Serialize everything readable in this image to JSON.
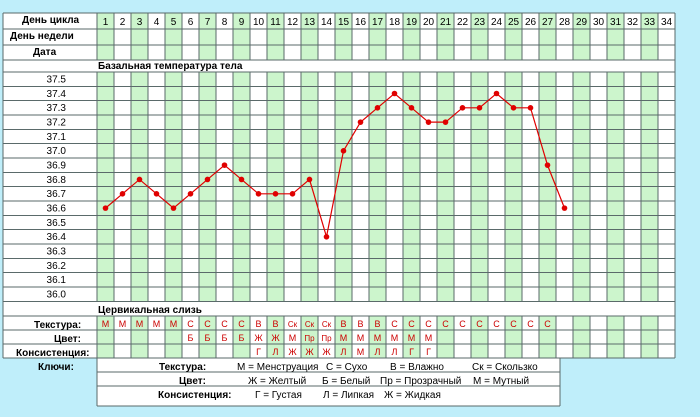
{
  "rows": {
    "cycle_day": "День цикла",
    "weekday": "День недели",
    "date": "Дата"
  },
  "sections": {
    "bbt": "Базальная температура тела",
    "mucus": "Цервикальная слизь"
  },
  "mucus_rows": {
    "texture": "Текстура:",
    "color": "Цвет:",
    "consistency": "Консистенция:"
  },
  "days": [
    "1",
    "2",
    "3",
    "4",
    "5",
    "6",
    "7",
    "8",
    "9",
    "10",
    "11",
    "12",
    "13",
    "14",
    "15",
    "16",
    "17",
    "18",
    "19",
    "20",
    "21",
    "22",
    "23",
    "24",
    "25",
    "26",
    "27",
    "28",
    "29",
    "30",
    "31",
    "32",
    "33",
    "34"
  ],
  "texture": [
    "М",
    "М",
    "М",
    "М",
    "М",
    "С",
    "С",
    "С",
    "С",
    "В",
    "В",
    "Ск",
    "Ск",
    "Ск",
    "В",
    "В",
    "В",
    "С",
    "С",
    "С",
    "С",
    "С",
    "С",
    "С",
    "С",
    "С",
    "С",
    "",
    "",
    "",
    "",
    "",
    "",
    ""
  ],
  "color": [
    "",
    "",
    "",
    "",
    "",
    "Б",
    "Б",
    "Б",
    "Б",
    "Ж",
    "Ж",
    "М",
    "Пр",
    "Пр",
    "М",
    "М",
    "М",
    "М",
    "М",
    "М",
    "",
    "",
    "",
    "",
    "",
    "",
    "",
    "",
    "",
    "",
    "",
    "",
    "",
    ""
  ],
  "consistency": [
    "",
    "",
    "",
    "",
    "",
    "",
    "",
    "",
    "",
    "Г",
    "Л",
    "Ж",
    "Ж",
    "Ж",
    "Л",
    "М",
    "Л",
    "Л",
    "Г",
    "Г",
    "",
    "",
    "",
    "",
    "",
    "",
    "",
    "",
    "",
    "",
    "",
    "",
    "",
    ""
  ],
  "keys": {
    "title": "Ключи:",
    "texture_label": "Текстура:",
    "texture_items": [
      "М = Менструация",
      "С = Сухо",
      "В = Влажно",
      "Ск = Скользко"
    ],
    "color_label": "Цвет:",
    "color_items": [
      "Ж = Желтый",
      "Б = Белый",
      "Пр = Прозрачный",
      "М = Мутный"
    ],
    "consistency_label": "Консистенция:",
    "consistency_items": [
      "Г = Густая",
      "Л = Липкая",
      "Ж = Жидкая"
    ]
  },
  "colors": {
    "background": "#bfeefa",
    "green_column": "#ccf5cc",
    "line": "#e00000",
    "mark_text": "#cc0000",
    "grid": "#5a6a6a"
  },
  "chart_data": {
    "type": "line",
    "title": "Базальная температура тела",
    "xlabel": "День цикла",
    "ylabel": "",
    "x": [
      1,
      2,
      3,
      4,
      5,
      6,
      7,
      8,
      9,
      10,
      11,
      12,
      13,
      14,
      15,
      16,
      17,
      18,
      19,
      20,
      21,
      22,
      23,
      24,
      25,
      26,
      27,
      28
    ],
    "y": [
      36.6,
      36.7,
      36.8,
      36.7,
      36.6,
      36.7,
      36.8,
      36.9,
      36.8,
      36.7,
      36.7,
      36.7,
      36.8,
      36.4,
      37.0,
      37.2,
      37.3,
      37.4,
      37.3,
      37.2,
      37.2,
      37.3,
      37.3,
      37.4,
      37.3,
      37.3,
      36.9,
      36.6
    ],
    "yticks": [
      "37.5",
      "37.4",
      "37.3",
      "37.2",
      "37.1",
      "37.0",
      "36.9",
      "36.8",
      "36.7",
      "36.6",
      "36.5",
      "36.4",
      "36.3",
      "36.2",
      "36.1",
      "36.0"
    ],
    "ylim": [
      36.0,
      37.5
    ],
    "xlim": [
      1,
      34
    ],
    "grid": true
  }
}
